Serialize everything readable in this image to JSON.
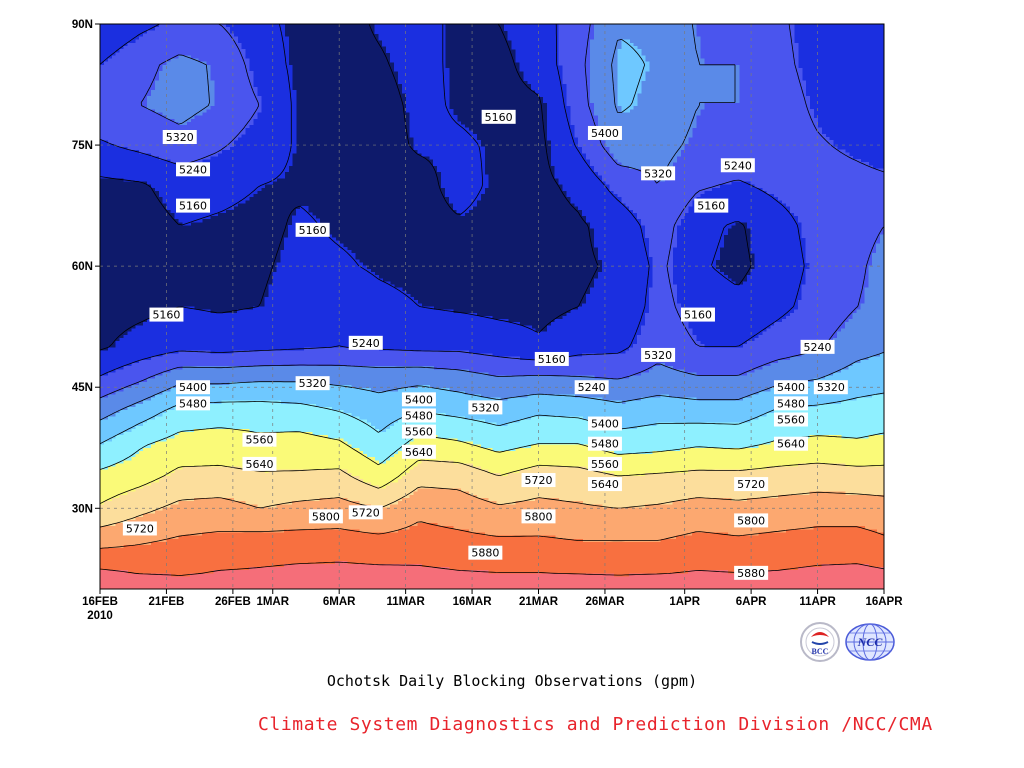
{
  "title": "Ochotsk Daily Blocking Observations (gpm)",
  "credit": "Climate System Diagnostics and Prediction Division /NCC/CMA",
  "credit_color": "#e8242c",
  "logos": [
    {
      "icon": "bcc-logo-icon",
      "text": "BCC"
    },
    {
      "icon": "ncc-logo-icon",
      "text": "NCC"
    }
  ],
  "chart_data": {
    "type": "heatmap",
    "subtype": "filled-contour",
    "title": "Ochotsk Daily Blocking Observations (gpm)",
    "units": "gpm",
    "x_axis": {
      "ticks": [
        {
          "value": "2010-02-16",
          "label": "16FEB",
          "sublabel": "2010"
        },
        {
          "value": "2010-02-21",
          "label": "21FEB"
        },
        {
          "value": "2010-02-26",
          "label": "26FEB"
        },
        {
          "value": "2010-03-01",
          "label": "1MAR"
        },
        {
          "value": "2010-03-06",
          "label": "6MAR"
        },
        {
          "value": "2010-03-11",
          "label": "11MAR"
        },
        {
          "value": "2010-03-16",
          "label": "16MAR"
        },
        {
          "value": "2010-03-21",
          "label": "21MAR"
        },
        {
          "value": "2010-03-26",
          "label": "26MAR"
        },
        {
          "value": "2010-04-01",
          "label": "1APR"
        },
        {
          "value": "2010-04-06",
          "label": "6APR"
        },
        {
          "value": "2010-04-11",
          "label": "11APR"
        },
        {
          "value": "2010-04-16",
          "label": "16APR"
        }
      ],
      "range": [
        "2010-02-16",
        "2010-04-16"
      ]
    },
    "y_axis": {
      "ticks": [
        {
          "value": 30,
          "label": "30N"
        },
        {
          "value": 45,
          "label": "45N"
        },
        {
          "value": 60,
          "label": "60N"
        },
        {
          "value": 75,
          "label": "75N"
        },
        {
          "value": 90,
          "label": "90N"
        }
      ],
      "range": [
        20,
        90
      ]
    },
    "grid": true,
    "grid_style": "dashed",
    "levels": [
      5160,
      5240,
      5320,
      5400,
      5480,
      5560,
      5640,
      5720,
      5800,
      5880
    ],
    "fill_colors": [
      "#0e1a6b",
      "#1b2fe0",
      "#4a55ee",
      "#5a8ae8",
      "#6ec8ff",
      "#8ef0ff",
      "#fafa78",
      "#fcde9c",
      "#fca870",
      "#f87040",
      "#f56e79",
      "#f0364e"
    ],
    "latitudes": [
      22,
      26,
      30,
      34,
      38,
      42,
      46,
      50,
      55,
      60,
      65,
      70,
      75,
      80,
      85,
      90
    ],
    "series": [
      {
        "date": "2010-02-16",
        "values": [
          5895,
          5770,
          5650,
          5580,
          5480,
          5370,
          5250,
          5150,
          5130,
          5130,
          5130,
          5140,
          5230,
          5300,
          5240,
          5170
        ]
      },
      {
        "date": "2010-02-19",
        "values": [
          5875,
          5790,
          5700,
          5610,
          5550,
          5440,
          5310,
          5190,
          5140,
          5130,
          5130,
          5150,
          5260,
          5320,
          5300,
          5220
        ]
      },
      {
        "date": "2010-02-22",
        "values": [
          5870,
          5810,
          5740,
          5660,
          5590,
          5510,
          5380,
          5220,
          5160,
          5150,
          5160,
          5190,
          5290,
          5350,
          5340,
          5260
        ]
      },
      {
        "date": "2010-02-25",
        "values": [
          5885,
          5820,
          5750,
          5660,
          5600,
          5520,
          5380,
          5210,
          5150,
          5150,
          5150,
          5180,
          5250,
          5310,
          5310,
          5240
        ]
      },
      {
        "date": "2010-02-28",
        "values": [
          5890,
          5830,
          5720,
          5650,
          5580,
          5520,
          5390,
          5220,
          5160,
          5150,
          5140,
          5160,
          5200,
          5240,
          5200,
          5180
        ]
      },
      {
        "date": "2010-03-03",
        "values": [
          5900,
          5830,
          5740,
          5650,
          5590,
          5510,
          5390,
          5230,
          5190,
          5180,
          5170,
          5150,
          5150,
          5140,
          5140,
          5140
        ]
      },
      {
        "date": "2010-03-06",
        "values": [
          5905,
          5830,
          5750,
          5660,
          5570,
          5480,
          5380,
          5240,
          5210,
          5170,
          5150,
          5140,
          5130,
          5130,
          5130,
          5130
        ]
      },
      {
        "date": "2010-03-09",
        "values": [
          5900,
          5820,
          5720,
          5590,
          5500,
          5440,
          5370,
          5230,
          5180,
          5150,
          5140,
          5130,
          5130,
          5130,
          5150,
          5170
        ]
      },
      {
        "date": "2010-03-12",
        "values": [
          5895,
          5830,
          5780,
          5690,
          5590,
          5480,
          5380,
          5220,
          5160,
          5140,
          5130,
          5130,
          5170,
          5180,
          5190,
          5190
        ]
      },
      {
        "date": "2010-03-15",
        "values": [
          5885,
          5820,
          5760,
          5690,
          5570,
          5460,
          5360,
          5220,
          5150,
          5140,
          5150,
          5190,
          5170,
          5150,
          5140,
          5140
        ]
      },
      {
        "date": "2010-03-18",
        "values": [
          5880,
          5810,
          5730,
          5640,
          5530,
          5440,
          5330,
          5200,
          5140,
          5130,
          5130,
          5140,
          5150,
          5140,
          5140,
          5160
        ]
      },
      {
        "date": "2010-03-21",
        "values": [
          5880,
          5810,
          5740,
          5680,
          5560,
          5470,
          5340,
          5170,
          5140,
          5130,
          5130,
          5140,
          5140,
          5150,
          5190,
          5200
        ]
      },
      {
        "date": "2010-03-24",
        "values": [
          5875,
          5800,
          5730,
          5670,
          5560,
          5460,
          5330,
          5210,
          5160,
          5150,
          5150,
          5180,
          5250,
          5290,
          5300,
          5290
        ]
      },
      {
        "date": "2010-03-27",
        "values": [
          5870,
          5800,
          5720,
          5640,
          5520,
          5430,
          5320,
          5220,
          5180,
          5170,
          5190,
          5270,
          5370,
          5410,
          5420,
          5390
        ]
      },
      {
        "date": "2010-03-30",
        "values": [
          5875,
          5800,
          5730,
          5650,
          5530,
          5450,
          5350,
          5290,
          5270,
          5260,
          5280,
          5320,
          5350,
          5380,
          5390,
          5380
        ]
      },
      {
        "date": "2010-04-02",
        "values": [
          5885,
          5820,
          5750,
          5660,
          5550,
          5440,
          5330,
          5240,
          5200,
          5170,
          5180,
          5250,
          5300,
          5320,
          5320,
          5310
        ]
      },
      {
        "date": "2010-04-05",
        "values": [
          5880,
          5810,
          5740,
          5660,
          5540,
          5440,
          5330,
          5240,
          5180,
          5140,
          5150,
          5230,
          5300,
          5320,
          5320,
          5300
        ]
      },
      {
        "date": "2010-04-08",
        "values": [
          5885,
          5820,
          5750,
          5670,
          5570,
          5490,
          5380,
          5280,
          5220,
          5200,
          5210,
          5260,
          5290,
          5290,
          5270,
          5260
        ]
      },
      {
        "date": "2010-04-11",
        "values": [
          5895,
          5830,
          5760,
          5680,
          5580,
          5500,
          5400,
          5310,
          5270,
          5260,
          5270,
          5280,
          5250,
          5220,
          5200,
          5190
        ]
      },
      {
        "date": "2010-04-14",
        "values": [
          5900,
          5830,
          5760,
          5670,
          5570,
          5510,
          5440,
          5370,
          5320,
          5310,
          5300,
          5270,
          5220,
          5180,
          5170,
          5170
        ]
      },
      {
        "date": "2010-04-16",
        "values": [
          5890,
          5810,
          5750,
          5670,
          5580,
          5520,
          5450,
          5390,
          5340,
          5340,
          5320,
          5260,
          5200,
          5170,
          5160,
          5160
        ]
      }
    ],
    "contour_labels": [
      {
        "text": "5320",
        "date": "2010-02-22",
        "lat": 76
      },
      {
        "text": "5240",
        "date": "2010-02-23",
        "lat": 72
      },
      {
        "text": "5160",
        "date": "2010-02-23",
        "lat": 67.5
      },
      {
        "text": "5160",
        "date": "2010-03-04",
        "lat": 64.5
      },
      {
        "text": "5160",
        "date": "2010-02-21",
        "lat": 54
      },
      {
        "text": "5240",
        "date": "2010-03-08",
        "lat": 50.5
      },
      {
        "text": "5160",
        "date": "2010-03-18",
        "lat": 78.5
      },
      {
        "text": "5160",
        "date": "2010-03-22",
        "lat": 48.5
      },
      {
        "text": "5240",
        "date": "2010-03-25",
        "lat": 45
      },
      {
        "text": "5400",
        "date": "2010-03-26",
        "lat": 76.5
      },
      {
        "text": "5320",
        "date": "2010-03-30",
        "lat": 71.5
      },
      {
        "text": "5240",
        "date": "2010-04-05",
        "lat": 72.5
      },
      {
        "text": "5160",
        "date": "2010-04-03",
        "lat": 67.5
      },
      {
        "text": "5160",
        "date": "2010-04-02",
        "lat": 54
      },
      {
        "text": "5320",
        "date": "2010-03-30",
        "lat": 49
      },
      {
        "text": "5240",
        "date": "2010-04-11",
        "lat": 50
      },
      {
        "text": "5400",
        "date": "2010-02-23",
        "lat": 45
      },
      {
        "text": "5480",
        "date": "2010-02-23",
        "lat": 43
      },
      {
        "text": "5320",
        "date": "2010-03-04",
        "lat": 45.5
      },
      {
        "text": "5400",
        "date": "2010-03-12",
        "lat": 43.5
      },
      {
        "text": "5480",
        "date": "2010-03-12",
        "lat": 41.5
      },
      {
        "text": "5560",
        "date": "2010-03-12",
        "lat": 39.5
      },
      {
        "text": "5640",
        "date": "2010-03-12",
        "lat": 37
      },
      {
        "text": "5320",
        "date": "2010-03-17",
        "lat": 42.5
      },
      {
        "text": "5560",
        "date": "2010-02-28",
        "lat": 38.5
      },
      {
        "text": "5640",
        "date": "2010-02-28",
        "lat": 35.5
      },
      {
        "text": "5400",
        "date": "2010-03-26",
        "lat": 40.5
      },
      {
        "text": "5480",
        "date": "2010-03-26",
        "lat": 38
      },
      {
        "text": "5560",
        "date": "2010-03-26",
        "lat": 35.5
      },
      {
        "text": "5640",
        "date": "2010-03-26",
        "lat": 33
      },
      {
        "text": "5720",
        "date": "2010-03-21",
        "lat": 33.5
      },
      {
        "text": "5800",
        "date": "2010-03-21",
        "lat": 29
      },
      {
        "text": "5720",
        "date": "2010-03-08",
        "lat": 29.5
      },
      {
        "text": "5800",
        "date": "2010-03-05",
        "lat": 29
      },
      {
        "text": "5720",
        "date": "2010-02-19",
        "lat": 27.5
      },
      {
        "text": "5880",
        "date": "2010-03-17",
        "lat": 24.5
      },
      {
        "text": "5720",
        "date": "2010-04-06",
        "lat": 33
      },
      {
        "text": "5800",
        "date": "2010-04-06",
        "lat": 28.5
      },
      {
        "text": "5880",
        "date": "2010-04-06",
        "lat": 22
      },
      {
        "text": "5400",
        "date": "2010-04-09",
        "lat": 45
      },
      {
        "text": "5320",
        "date": "2010-04-12",
        "lat": 45
      },
      {
        "text": "5480",
        "date": "2010-04-09",
        "lat": 43
      },
      {
        "text": "5560",
        "date": "2010-04-09",
        "lat": 41
      },
      {
        "text": "5640",
        "date": "2010-04-09",
        "lat": 38
      }
    ]
  }
}
